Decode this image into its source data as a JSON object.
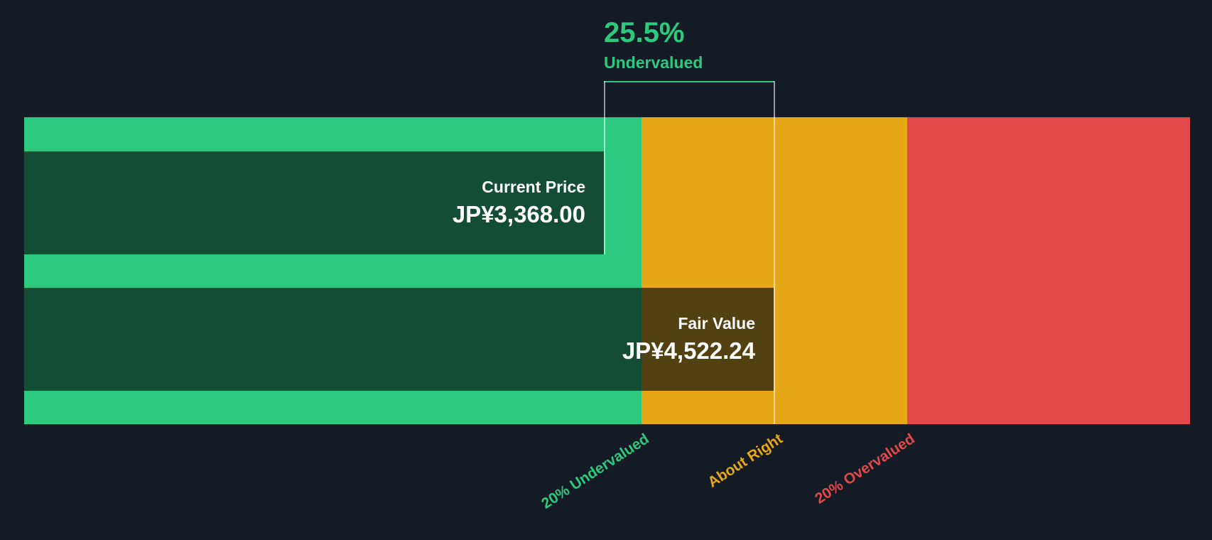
{
  "colors": {
    "background": "#151B24",
    "undervalued_green": "#2DC97E",
    "about_right_amber": "#E6A817",
    "overvalued_red": "#E2494A",
    "bar_text": "#FFFFFF"
  },
  "chart_data": {
    "type": "bar",
    "subtype": "valuation-gauge",
    "orientation": "horizontal",
    "annotation": {
      "pct": "25.5%",
      "label": "Undervalued",
      "color": "#2DC97E"
    },
    "currency": "JP¥",
    "bars": [
      {
        "name": "Current Price",
        "value": 3368.0,
        "value_label": "JP¥3,368.00"
      },
      {
        "name": "Fair Value",
        "value": 4522.24,
        "value_label": "JP¥4,522.24"
      }
    ],
    "zones": [
      {
        "label": "20% Undervalued",
        "color": "#2DC97E"
      },
      {
        "label": "About Right",
        "color": "#E6A817"
      },
      {
        "label": "20% Overvalued",
        "color": "#E2494A"
      }
    ],
    "legend_position": "below-rotated"
  }
}
